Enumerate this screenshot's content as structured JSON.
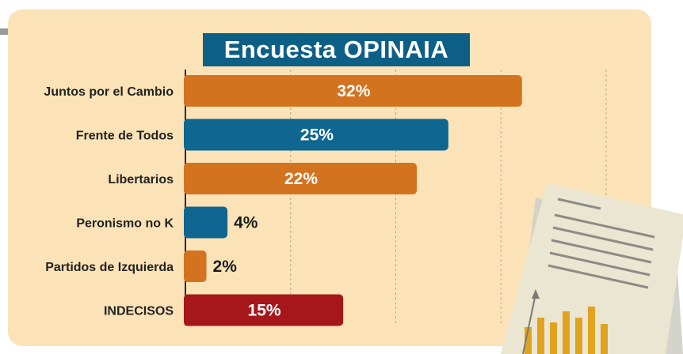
{
  "chart_data": {
    "type": "bar",
    "orientation": "horizontal",
    "title": "Encuesta OPINAIA",
    "categories": [
      "Juntos por el Cambio",
      "Frente de Todos",
      "Libertarios",
      "Peronismo no K",
      "Partidos de Izquierda",
      "INDECISOS"
    ],
    "values": [
      32,
      25,
      22,
      4,
      2,
      15
    ],
    "value_labels": [
      "32%",
      "25%",
      "22%",
      "4%",
      "2%",
      "15%"
    ],
    "bar_colors": [
      "#d4731f",
      "#0f6691",
      "#d4731f",
      "#0f6691",
      "#d4731f",
      "#a61719"
    ],
    "xlim": [
      0,
      40
    ],
    "grid": true
  },
  "colors": {
    "panel_background": "#fbe3b7",
    "title_background": "#0d5f86",
    "title_text": "#ffffff"
  },
  "decoration": {
    "icon": "documents-with-bar-chart-icon"
  }
}
